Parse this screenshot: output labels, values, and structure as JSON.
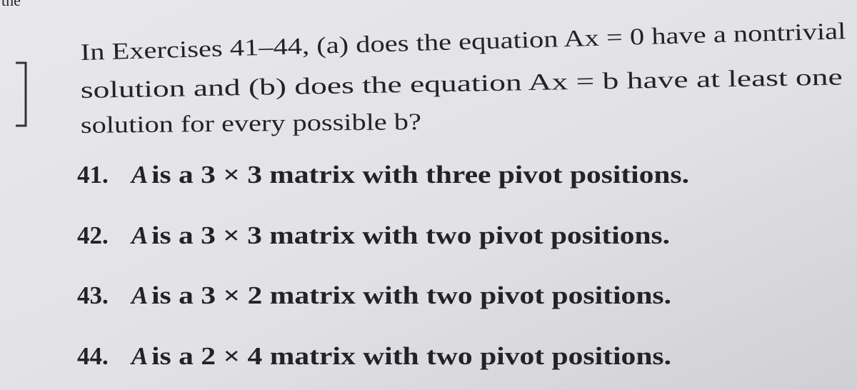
{
  "top_fragment": "the",
  "intro": {
    "lines": [
      "In Exercises 41–44, (a) does the equation Ax = 0 have a nontrivial",
      "solution and (b) does the equation Ax = b have at least one",
      "solution for every possible b?"
    ]
  },
  "exercises": [
    {
      "number": "41.",
      "variable": "A",
      "text": "is a 3 × 3 matrix with three pivot positions."
    },
    {
      "number": "42.",
      "variable": "A",
      "text": "is a 3 × 3 matrix with two pivot positions."
    },
    {
      "number": "43.",
      "variable": "A",
      "text": "is a 3 × 2 matrix with two pivot positions."
    },
    {
      "number": "44.",
      "variable": "A",
      "text": "is a 2 × 4 matrix with two pivot positions."
    }
  ]
}
